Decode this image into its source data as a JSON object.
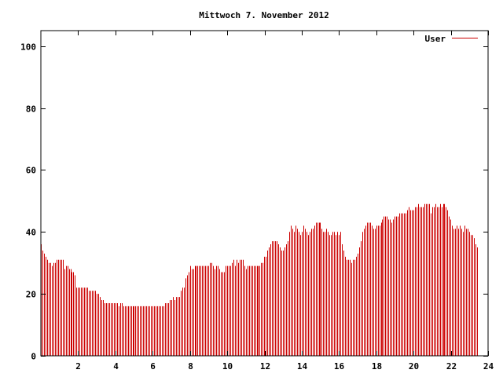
{
  "chart_data": {
    "type": "bar",
    "title": "Mittwoch 7. November 2012",
    "xlabel": "",
    "ylabel": "",
    "xlim": [
      0,
      24
    ],
    "ylim": [
      0,
      105
    ],
    "x_ticks": [
      2,
      4,
      6,
      8,
      10,
      12,
      14,
      16,
      18,
      20,
      22,
      24
    ],
    "y_ticks": [
      0,
      20,
      40,
      60,
      80,
      100
    ],
    "grid": false,
    "legend_position": "top-right",
    "series": [
      {
        "name": "User",
        "color": "#cc0000",
        "x_start": 0,
        "x_step": 0.0833,
        "values": [
          36,
          34,
          33,
          32,
          31,
          30,
          30,
          29,
          30,
          30,
          31,
          31,
          31,
          31,
          31,
          28,
          29,
          29,
          28,
          28,
          27,
          27,
          26,
          22,
          22,
          22,
          22,
          22,
          22,
          22,
          22,
          21,
          21,
          21,
          21,
          21,
          20,
          20,
          19,
          18,
          18,
          17,
          17,
          17,
          17,
          17,
          17,
          17,
          17,
          17,
          16,
          17,
          17,
          16,
          16,
          16,
          16,
          16,
          16,
          16,
          16,
          16,
          16,
          16,
          16,
          16,
          16,
          16,
          16,
          16,
          16,
          16,
          16,
          16,
          16,
          16,
          16,
          16,
          16,
          16,
          17,
          17,
          17,
          18,
          18,
          19,
          18,
          19,
          19,
          19,
          21,
          22,
          22,
          25,
          26,
          27,
          29,
          28,
          28,
          29,
          29,
          29,
          29,
          29,
          29,
          29,
          29,
          29,
          29,
          30,
          30,
          29,
          28,
          29,
          29,
          28,
          27,
          27,
          27,
          29,
          29,
          29,
          29,
          30,
          31,
          29,
          31,
          30,
          31,
          31,
          31,
          29,
          28,
          29,
          29,
          29,
          29,
          29,
          29,
          29,
          29,
          29,
          30,
          30,
          32,
          32,
          34,
          35,
          36,
          37,
          37,
          37,
          37,
          36,
          35,
          34,
          34,
          35,
          36,
          37,
          40,
          42,
          41,
          40,
          42,
          41,
          40,
          39,
          40,
          42,
          41,
          40,
          39,
          40,
          41,
          41,
          42,
          43,
          43,
          43,
          43,
          41,
          40,
          40,
          41,
          40,
          39,
          39,
          40,
          40,
          39,
          40,
          39,
          40,
          36,
          34,
          32,
          31,
          31,
          31,
          30,
          31,
          31,
          32,
          33,
          35,
          37,
          40,
          41,
          42,
          43,
          43,
          43,
          42,
          41,
          41,
          42,
          42,
          42,
          43,
          44,
          45,
          45,
          45,
          44,
          44,
          43,
          44,
          45,
          45,
          45,
          46,
          46,
          46,
          46,
          46,
          47,
          48,
          47,
          47,
          47,
          48,
          48,
          49,
          48,
          48,
          48,
          49,
          49,
          49,
          49,
          46,
          48,
          48,
          49,
          48,
          48,
          49,
          48,
          49,
          49,
          48,
          47,
          45,
          44,
          42,
          41,
          41,
          42,
          41,
          42,
          41,
          40,
          42,
          41,
          41,
          40,
          39,
          39,
          38,
          36,
          35
        ]
      }
    ]
  }
}
